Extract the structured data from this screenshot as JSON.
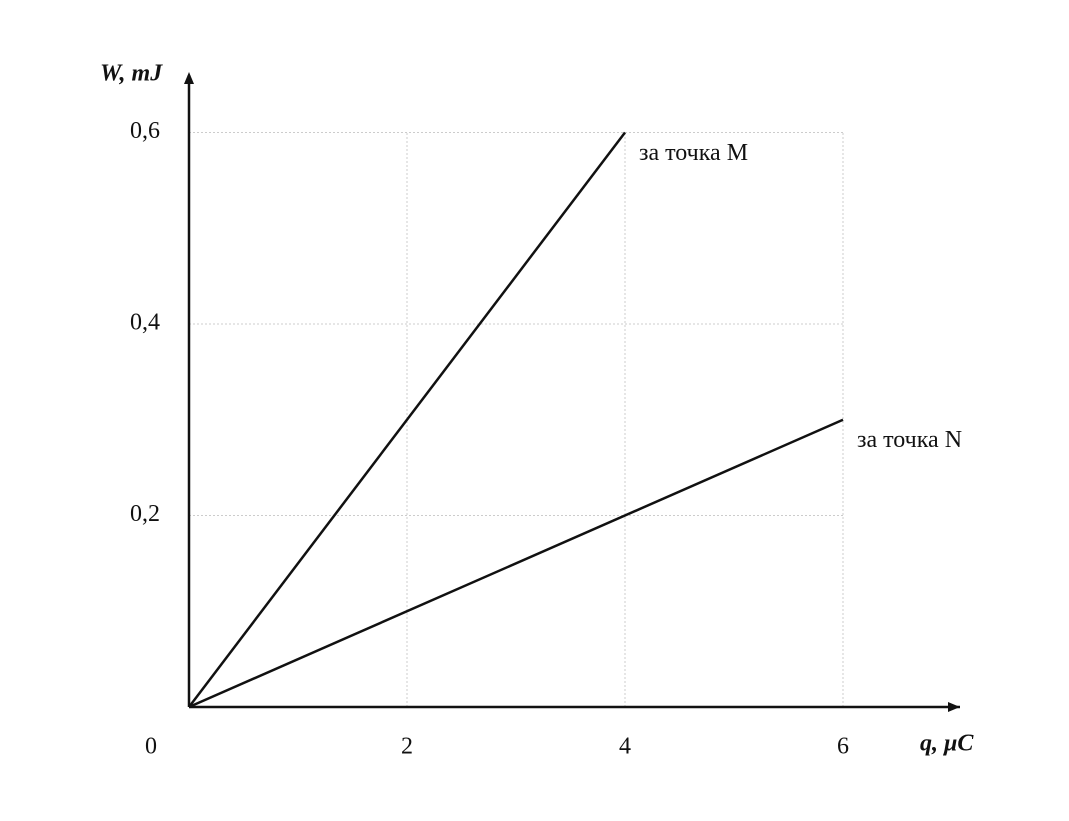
{
  "chart_data": {
    "type": "line",
    "x_label": "q, μC",
    "y_label": "W, mJ",
    "series": [
      {
        "name": "за точка M",
        "color": "#111111",
        "x": [
          0,
          4
        ],
        "values": [
          0,
          0.6
        ]
      },
      {
        "name": "за точка N",
        "color": "#111111",
        "x": [
          0,
          6
        ],
        "values": [
          0,
          0.3
        ]
      }
    ],
    "xlim": [
      0,
      7
    ],
    "ylim": [
      0,
      0.66
    ],
    "xticks": [
      0,
      2,
      4,
      6
    ],
    "yticks": [
      {
        "value": 0.2,
        "label": "0,2"
      },
      {
        "value": 0.4,
        "label": "0,4"
      },
      {
        "value": 0.6,
        "label": "0,6"
      }
    ],
    "grid": true
  }
}
